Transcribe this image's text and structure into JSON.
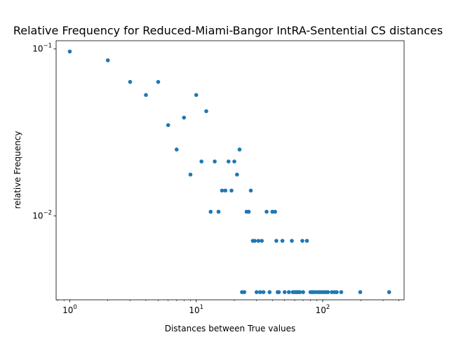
{
  "chart_data": {
    "type": "scatter",
    "title": "Relative Frequency for Reduced-Miami-Bangor IntRA-Sentential CS distances",
    "xlabel": "Distances between True values",
    "ylabel": "relative Frequency",
    "xscale": "log",
    "yscale": "log",
    "xlim": [
      0.78,
      440
    ],
    "ylim": [
      0.00315,
      0.112
    ],
    "grid": false,
    "marker_color": "#1f77b4",
    "x_ticks": [
      {
        "base": "10",
        "exp": "0",
        "value": 1
      },
      {
        "base": "10",
        "exp": "1",
        "value": 10
      },
      {
        "base": "10",
        "exp": "2",
        "value": 100
      }
    ],
    "y_ticks": [
      {
        "base": "10",
        "exp": "−2",
        "value": 0.01
      },
      {
        "base": "10",
        "exp": "−1",
        "value": 0.1
      }
    ],
    "points": [
      [
        1,
        0.0965
      ],
      [
        2,
        0.0855
      ],
      [
        3,
        0.0635
      ],
      [
        4,
        0.053
      ],
      [
        5,
        0.0635
      ],
      [
        6,
        0.035
      ],
      [
        7,
        0.025
      ],
      [
        8,
        0.0388
      ],
      [
        9,
        0.0177
      ],
      [
        10,
        0.053
      ],
      [
        11,
        0.0212
      ],
      [
        12,
        0.0424
      ],
      [
        13,
        0.0106
      ],
      [
        14,
        0.0212
      ],
      [
        15,
        0.0106
      ],
      [
        16,
        0.0142
      ],
      [
        17,
        0.0142
      ],
      [
        18,
        0.0212
      ],
      [
        19,
        0.0142
      ],
      [
        20,
        0.0212
      ],
      [
        21,
        0.0177
      ],
      [
        22,
        0.025
      ],
      [
        23,
        0.0035
      ],
      [
        24,
        0.0035
      ],
      [
        25,
        0.0106
      ],
      [
        26,
        0.0106
      ],
      [
        27,
        0.0142
      ],
      [
        28,
        0.0071
      ],
      [
        29,
        0.0071
      ],
      [
        30,
        0.0035
      ],
      [
        31,
        0.0071
      ],
      [
        32,
        0.0035
      ],
      [
        33,
        0.0071
      ],
      [
        34,
        0.0035
      ],
      [
        36,
        0.0106
      ],
      [
        38,
        0.0035
      ],
      [
        40,
        0.0106
      ],
      [
        42,
        0.0106
      ],
      [
        43,
        0.0071
      ],
      [
        44,
        0.0035
      ],
      [
        45,
        0.0035
      ],
      [
        48,
        0.0071
      ],
      [
        50,
        0.0035
      ],
      [
        54,
        0.0035
      ],
      [
        57,
        0.0071
      ],
      [
        58,
        0.0035
      ],
      [
        60,
        0.0035
      ],
      [
        62,
        0.0035
      ],
      [
        64,
        0.0035
      ],
      [
        66,
        0.0035
      ],
      [
        69,
        0.0071
      ],
      [
        70,
        0.0035
      ],
      [
        75,
        0.0071
      ],
      [
        80,
        0.0035
      ],
      [
        83,
        0.0035
      ],
      [
        86,
        0.0035
      ],
      [
        90,
        0.0035
      ],
      [
        94,
        0.0035
      ],
      [
        98,
        0.0035
      ],
      [
        102,
        0.0035
      ],
      [
        106,
        0.0035
      ],
      [
        110,
        0.0035
      ],
      [
        118,
        0.0035
      ],
      [
        124,
        0.0035
      ],
      [
        129,
        0.0035
      ],
      [
        140,
        0.0035
      ],
      [
        198,
        0.0035
      ],
      [
        335,
        0.0035
      ]
    ]
  }
}
